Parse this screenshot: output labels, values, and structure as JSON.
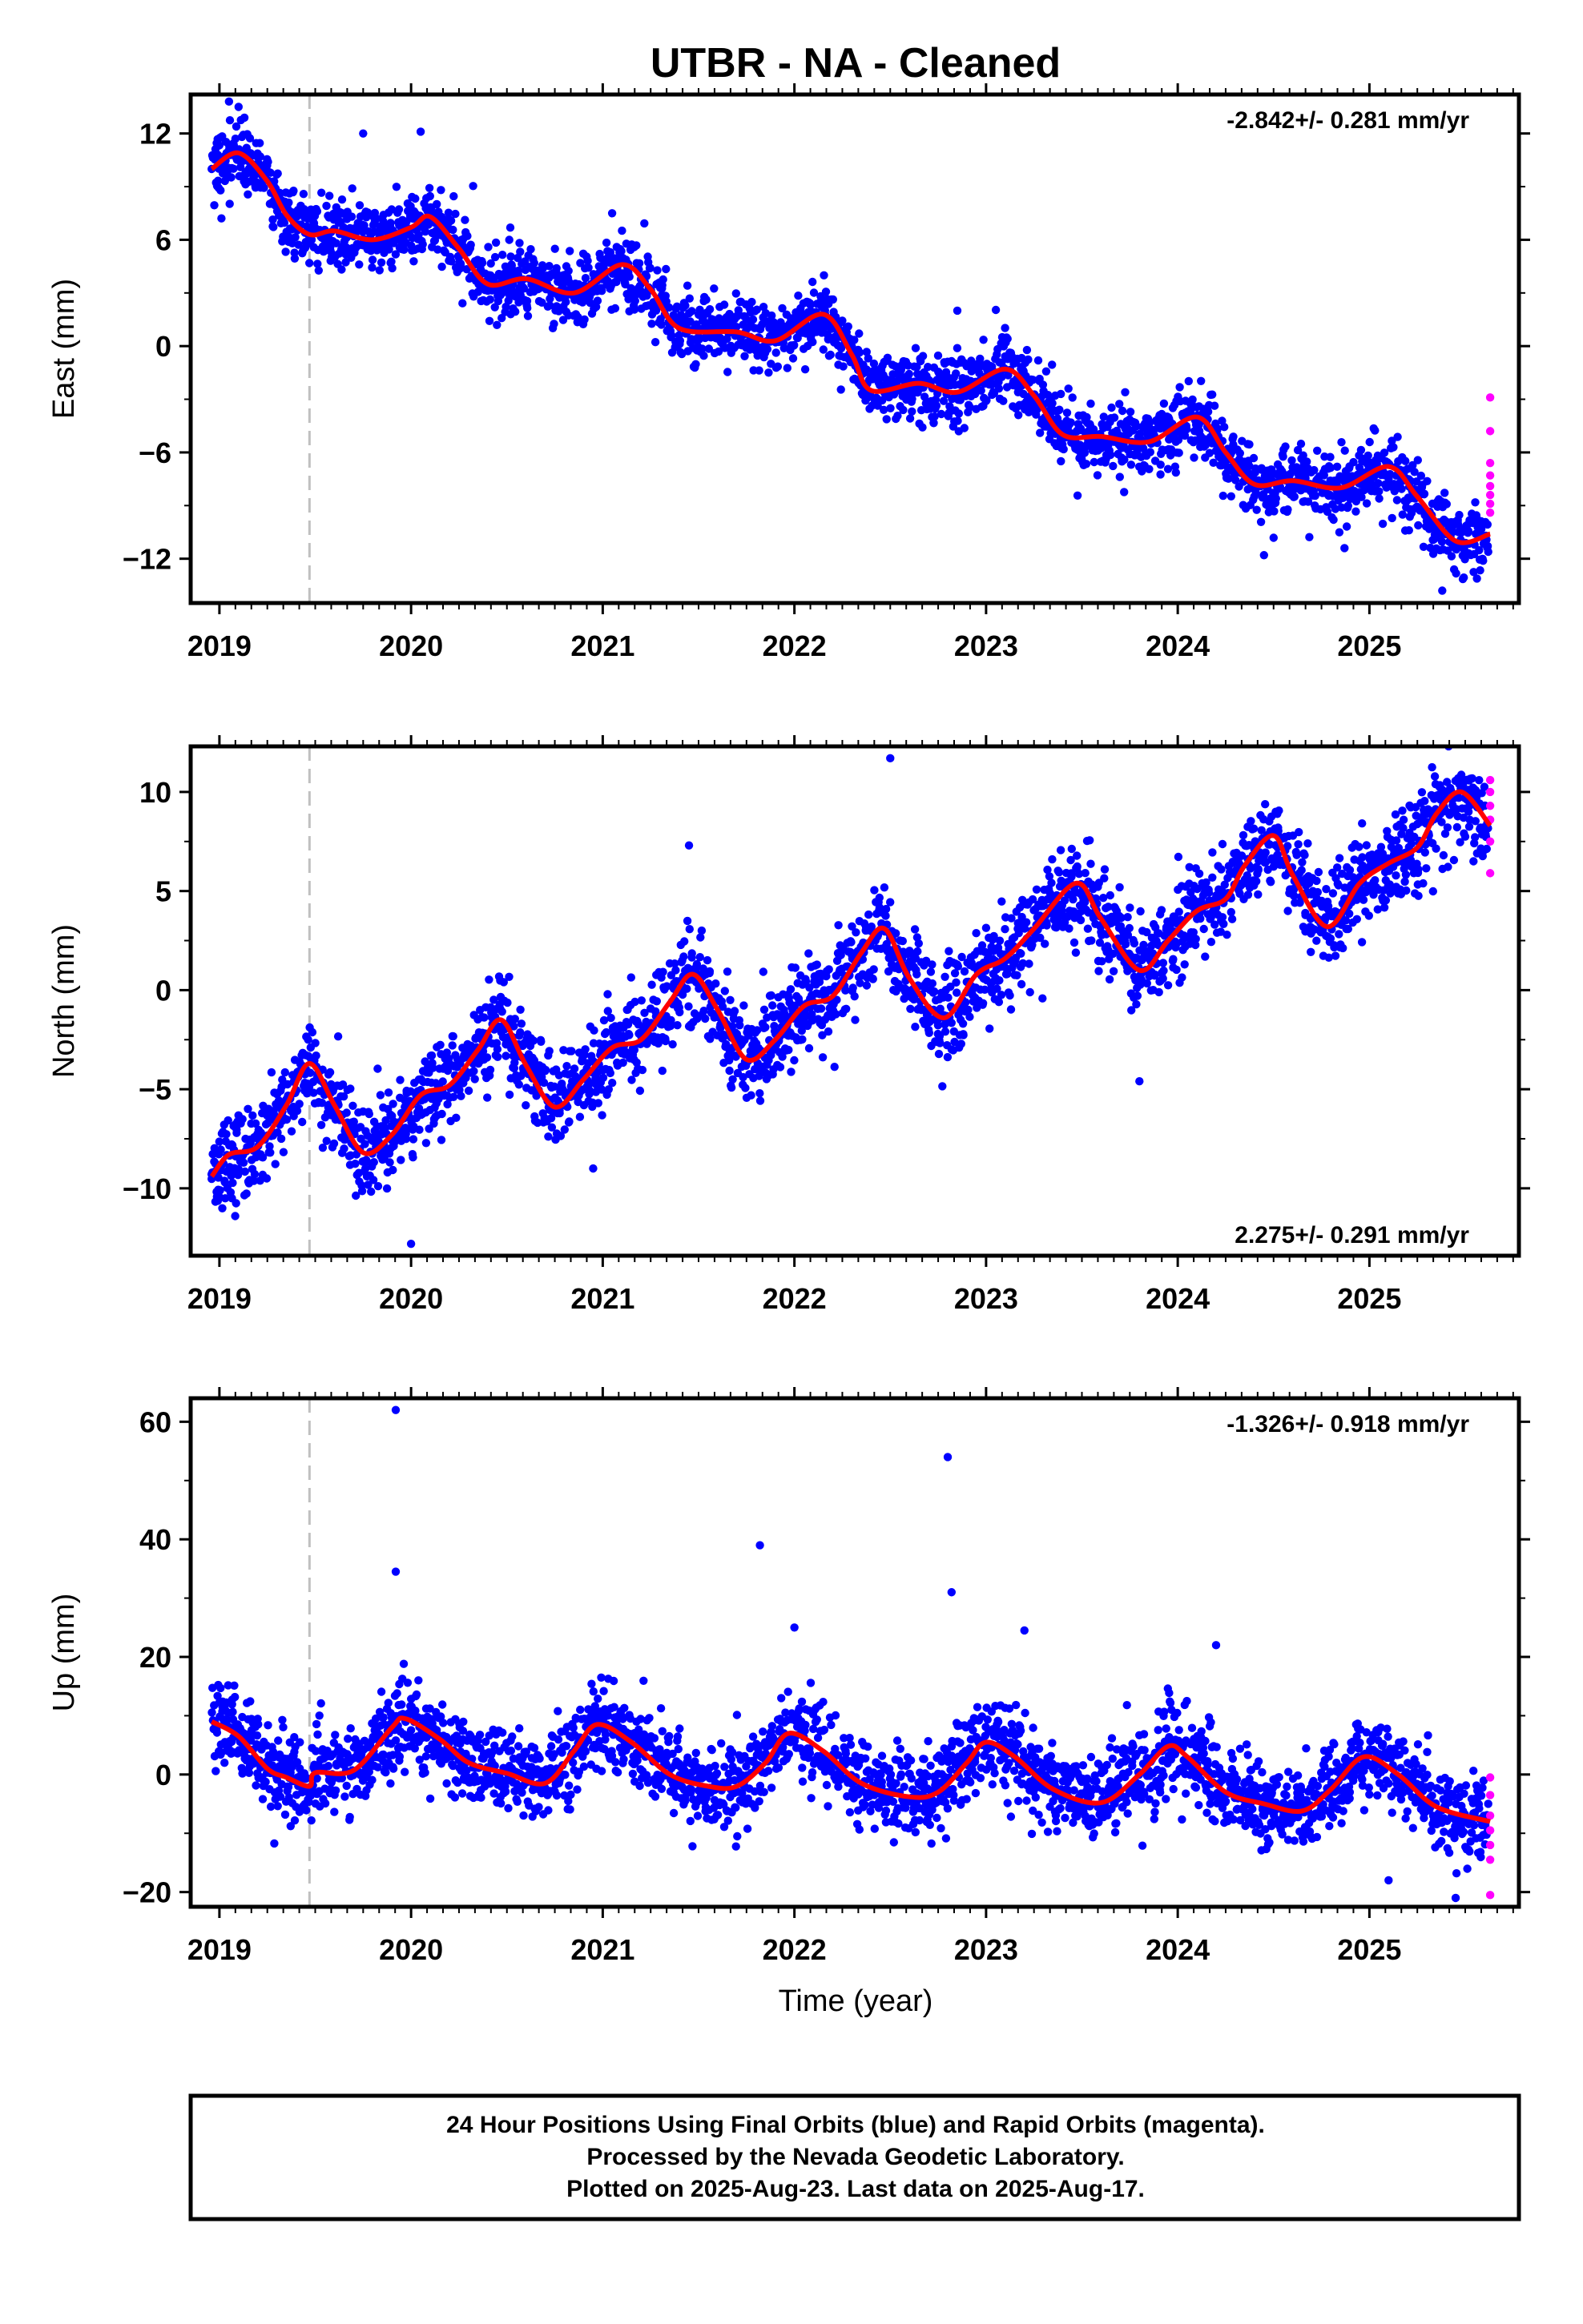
{
  "title": "UTBR  - NA - Cleaned",
  "xlabel": "Time (year)",
  "footer": [
    "24 Hour Positions Using Final Orbits (blue) and Rapid Orbits (magenta).",
    "Processed by the Nevada Geodetic Laboratory.",
    "Plotted on 2025-Aug-23. Last data on 2025-Aug-17."
  ],
  "colors": {
    "final": "#0000ff",
    "rapid": "#ff00ff",
    "trend": "#ff0000",
    "marker": "#c0c0c0"
  },
  "chart_data": [
    {
      "type": "scatter",
      "ylabel": "East (mm)",
      "rate": "-2.842+/- 0.281 mm/yr",
      "xlim": [
        2018.85,
        2025.78
      ],
      "ylim": [
        -14.5,
        14.2
      ],
      "yticks": [
        12,
        6,
        0,
        -6,
        -12
      ],
      "xticks": [
        2019,
        2020,
        2021,
        2022,
        2023,
        2024,
        2025
      ],
      "equipment_change": 2019.47,
      "trend": [
        [
          2018.96,
          10.0
        ],
        [
          2019.1,
          10.9
        ],
        [
          2019.25,
          9.3
        ],
        [
          2019.35,
          7.4
        ],
        [
          2019.47,
          6.3
        ],
        [
          2019.6,
          6.5
        ],
        [
          2019.8,
          6.0
        ],
        [
          2020.0,
          6.7
        ],
        [
          2020.1,
          7.3
        ],
        [
          2020.25,
          5.5
        ],
        [
          2020.4,
          3.5
        ],
        [
          2020.6,
          3.8
        ],
        [
          2020.85,
          3.0
        ],
        [
          2021.1,
          4.6
        ],
        [
          2021.25,
          3.2
        ],
        [
          2021.4,
          1.0
        ],
        [
          2021.7,
          0.8
        ],
        [
          2021.9,
          0.3
        ],
        [
          2022.15,
          1.8
        ],
        [
          2022.3,
          -0.5
        ],
        [
          2022.4,
          -2.5
        ],
        [
          2022.65,
          -2.1
        ],
        [
          2022.85,
          -2.6
        ],
        [
          2023.1,
          -1.3
        ],
        [
          2023.25,
          -2.8
        ],
        [
          2023.4,
          -5.0
        ],
        [
          2023.6,
          -5.1
        ],
        [
          2023.85,
          -5.4
        ],
        [
          2024.1,
          -4.0
        ],
        [
          2024.25,
          -6.0
        ],
        [
          2024.4,
          -7.8
        ],
        [
          2024.6,
          -7.6
        ],
        [
          2024.85,
          -8.0
        ],
        [
          2025.1,
          -6.8
        ],
        [
          2025.25,
          -8.5
        ],
        [
          2025.45,
          -11.0
        ],
        [
          2025.63,
          -10.6
        ]
      ],
      "outliers": [
        [
          2019.05,
          13.8
        ],
        [
          2019.1,
          13.5
        ],
        [
          2019.75,
          12.0
        ],
        [
          2020.05,
          12.1
        ],
        [
          2022.85,
          2.0
        ],
        [
          2025.38,
          -13.8
        ],
        [
          2024.87,
          -11.4
        ],
        [
          2024.45,
          -11.8
        ]
      ],
      "rapid": [
        [
          2025.63,
          -2.9
        ],
        [
          2025.63,
          -4.8
        ],
        [
          2025.63,
          -6.6
        ],
        [
          2025.63,
          -7.3
        ],
        [
          2025.63,
          -7.9
        ],
        [
          2025.63,
          -8.4
        ],
        [
          2025.63,
          -8.9
        ],
        [
          2025.63,
          -9.4
        ]
      ]
    },
    {
      "type": "scatter",
      "ylabel": "North (mm)",
      "rate": "2.275+/- 0.291 mm/yr",
      "xlim": [
        2018.85,
        2025.78
      ],
      "ylim": [
        -13.4,
        12.3
      ],
      "yticks": [
        10,
        5,
        0,
        -5,
        -10
      ],
      "xticks": [
        2019,
        2020,
        2021,
        2022,
        2023,
        2024,
        2025
      ],
      "equipment_change": 2019.47,
      "trend": [
        [
          2018.96,
          -9.4
        ],
        [
          2019.05,
          -8.3
        ],
        [
          2019.2,
          -7.9
        ],
        [
          2019.35,
          -5.8
        ],
        [
          2019.47,
          -3.7
        ],
        [
          2019.6,
          -5.8
        ],
        [
          2019.75,
          -8.2
        ],
        [
          2019.9,
          -7.3
        ],
        [
          2020.05,
          -5.3
        ],
        [
          2020.2,
          -4.8
        ],
        [
          2020.35,
          -3.0
        ],
        [
          2020.47,
          -1.5
        ],
        [
          2020.6,
          -3.8
        ],
        [
          2020.75,
          -5.9
        ],
        [
          2020.9,
          -4.5
        ],
        [
          2021.05,
          -2.9
        ],
        [
          2021.2,
          -2.5
        ],
        [
          2021.35,
          -0.6
        ],
        [
          2021.47,
          0.8
        ],
        [
          2021.6,
          -1.0
        ],
        [
          2021.75,
          -3.5
        ],
        [
          2021.9,
          -2.5
        ],
        [
          2022.05,
          -0.8
        ],
        [
          2022.2,
          -0.3
        ],
        [
          2022.35,
          1.9
        ],
        [
          2022.47,
          3.1
        ],
        [
          2022.6,
          0.6
        ],
        [
          2022.78,
          -1.4
        ],
        [
          2022.95,
          0.8
        ],
        [
          2023.1,
          1.6
        ],
        [
          2023.25,
          3.1
        ],
        [
          2023.47,
          5.4
        ],
        [
          2023.6,
          3.6
        ],
        [
          2023.8,
          1.0
        ],
        [
          2023.95,
          2.5
        ],
        [
          2024.1,
          4.0
        ],
        [
          2024.25,
          4.6
        ],
        [
          2024.35,
          6.3
        ],
        [
          2024.5,
          7.8
        ],
        [
          2024.6,
          5.8
        ],
        [
          2024.78,
          3.2
        ],
        [
          2024.95,
          5.4
        ],
        [
          2025.1,
          6.4
        ],
        [
          2025.25,
          7.2
        ],
        [
          2025.35,
          8.9
        ],
        [
          2025.48,
          10.0
        ],
        [
          2025.63,
          8.3
        ]
      ],
      "outliers": [
        [
          2022.5,
          11.7
        ],
        [
          2020.0,
          -12.8
        ],
        [
          2020.95,
          -9.0
        ],
        [
          2021.45,
          7.3
        ],
        [
          2023.8,
          -4.6
        ]
      ],
      "rapid": [
        [
          2025.63,
          10.6
        ],
        [
          2025.63,
          10.0
        ],
        [
          2025.63,
          9.3
        ],
        [
          2025.63,
          8.6
        ],
        [
          2025.63,
          7.5
        ],
        [
          2025.63,
          5.9
        ]
      ]
    },
    {
      "type": "scatter",
      "ylabel": "Up (mm)",
      "rate": "-1.326+/- 0.918 mm/yr",
      "xlim": [
        2018.85,
        2025.78
      ],
      "ylim": [
        -22.5,
        64
      ],
      "yticks": [
        60,
        40,
        20,
        0,
        -20
      ],
      "xticks": [
        2019,
        2020,
        2021,
        2022,
        2023,
        2024,
        2025
      ],
      "equipment_change": 2019.47,
      "trend": [
        [
          2018.96,
          9.0
        ],
        [
          2019.1,
          6.5
        ],
        [
          2019.25,
          1.0
        ],
        [
          2019.35,
          -0.5
        ],
        [
          2019.47,
          -2.0
        ],
        [
          2019.5,
          0.3
        ],
        [
          2019.7,
          0.7
        ],
        [
          2019.9,
          8.0
        ],
        [
          2019.97,
          9.5
        ],
        [
          2020.15,
          6.0
        ],
        [
          2020.3,
          2.0
        ],
        [
          2020.5,
          0.2
        ],
        [
          2020.7,
          -1.5
        ],
        [
          2020.85,
          4.0
        ],
        [
          2020.97,
          8.5
        ],
        [
          2021.15,
          5.5
        ],
        [
          2021.35,
          0.0
        ],
        [
          2021.55,
          -2.0
        ],
        [
          2021.7,
          -2.0
        ],
        [
          2021.85,
          2.0
        ],
        [
          2021.97,
          7.0
        ],
        [
          2022.15,
          4.0
        ],
        [
          2022.35,
          -1.5
        ],
        [
          2022.6,
          -3.8
        ],
        [
          2022.75,
          -3.0
        ],
        [
          2022.9,
          2.0
        ],
        [
          2023.0,
          5.5
        ],
        [
          2023.15,
          3.0
        ],
        [
          2023.35,
          -2.5
        ],
        [
          2023.6,
          -4.8
        ],
        [
          2023.8,
          0.0
        ],
        [
          2023.95,
          4.8
        ],
        [
          2024.05,
          3.0
        ],
        [
          2024.25,
          -3.0
        ],
        [
          2024.45,
          -5.0
        ],
        [
          2024.65,
          -6.2
        ],
        [
          2024.8,
          -2.5
        ],
        [
          2024.97,
          3.0
        ],
        [
          2025.15,
          0.0
        ],
        [
          2025.35,
          -5.5
        ],
        [
          2025.63,
          -8.0
        ]
      ],
      "outliers": [
        [
          2019.92,
          62
        ],
        [
          2019.92,
          34.5
        ],
        [
          2021.82,
          39
        ],
        [
          2022.8,
          54
        ],
        [
          2022.82,
          31
        ],
        [
          2022.0,
          25
        ],
        [
          2023.2,
          24.5
        ],
        [
          2024.2,
          22
        ],
        [
          2025.45,
          -21
        ],
        [
          2025.1,
          -18
        ]
      ],
      "rapid": [
        [
          2025.63,
          -0.5
        ],
        [
          2025.63,
          -3.5
        ],
        [
          2025.63,
          -7.0
        ],
        [
          2025.63,
          -9.5
        ],
        [
          2025.63,
          -12.0
        ],
        [
          2025.63,
          -14.5
        ],
        [
          2025.63,
          -20.5
        ]
      ]
    }
  ]
}
